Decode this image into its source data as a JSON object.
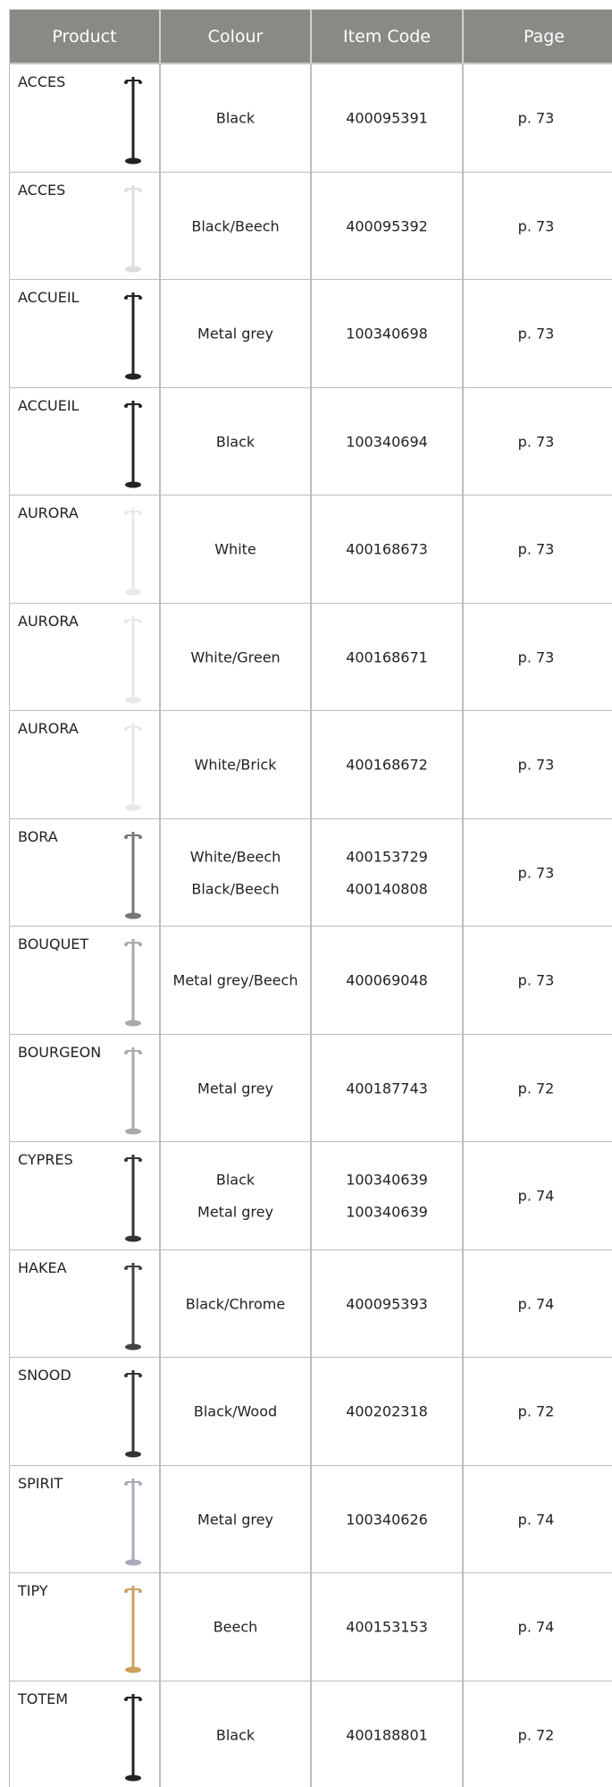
{
  "table": {
    "header": [
      "Product",
      "Colour",
      "Item Code",
      "Page"
    ],
    "rows": [
      {
        "product": "ACCES",
        "colours": [
          "Black"
        ],
        "codes": [
          "400095391"
        ],
        "page": "p. 73"
      },
      {
        "product": "ACCES",
        "colours": [
          "Black/Beech"
        ],
        "codes": [
          "400095392"
        ],
        "page": "p. 73"
      },
      {
        "product": "ACCUEIL",
        "colours": [
          "Metal grey"
        ],
        "codes": [
          "100340698"
        ],
        "page": "p. 73"
      },
      {
        "product": "ACCUEIL",
        "colours": [
          "Black"
        ],
        "codes": [
          "100340694"
        ],
        "page": "p. 73"
      },
      {
        "product": "AURORA",
        "colours": [
          "White"
        ],
        "codes": [
          "400168673"
        ],
        "page": "p. 73"
      },
      {
        "product": "AURORA",
        "colours": [
          "White/Green"
        ],
        "codes": [
          "400168671"
        ],
        "page": "p. 73"
      },
      {
        "product": "AURORA",
        "colours": [
          "White/Brick"
        ],
        "codes": [
          "400168672"
        ],
        "page": "p. 73"
      },
      {
        "product": "BORA",
        "colours": [
          "White/Beech",
          "Black/Beech"
        ],
        "codes": [
          "400153729",
          "400140808"
        ],
        "page": "p. 73"
      },
      {
        "product": "BOUQUET",
        "colours": [
          "Metal grey/Beech"
        ],
        "codes": [
          "400069048"
        ],
        "page": "p. 73"
      },
      {
        "product": "BOURGEON",
        "colours": [
          "Metal grey"
        ],
        "codes": [
          "400187743"
        ],
        "page": "p. 72"
      },
      {
        "product": "CYPRES",
        "colours": [
          "Black",
          "Metal grey"
        ],
        "codes": [
          "100340639",
          "100340639"
        ],
        "page": "p. 74"
      },
      {
        "product": "HAKEA",
        "colours": [
          "Black/Chrome"
        ],
        "codes": [
          "400095393"
        ],
        "page": "p. 74"
      },
      {
        "product": "SNOOD",
        "colours": [
          "Black/Wood"
        ],
        "codes": [
          "400202318"
        ],
        "page": "p. 72"
      },
      {
        "product": "SPIRIT",
        "colours": [
          "Metal grey"
        ],
        "codes": [
          "100340626"
        ],
        "page": "p. 74"
      },
      {
        "product": "TIPY",
        "colours": [
          "Beech"
        ],
        "codes": [
          "400153153"
        ],
        "page": "p. 74"
      },
      {
        "product": "TOTEM",
        "colours": [
          "Black"
        ],
        "codes": [
          "400188801"
        ],
        "page": "p. 72"
      }
    ]
  }
}
